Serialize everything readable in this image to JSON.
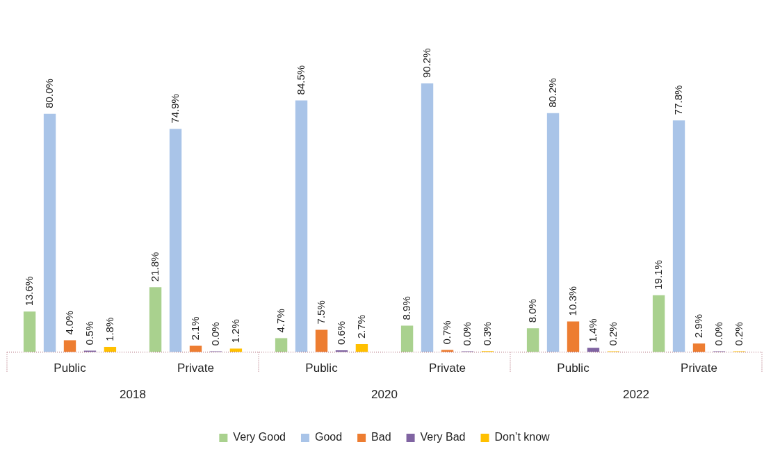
{
  "chart_data": {
    "type": "bar",
    "categories": [
      "Public",
      "Private",
      "Public",
      "Private",
      "Public",
      "Private"
    ],
    "annotations": [
      "2018",
      "2020",
      "2022"
    ],
    "legend": "bottom",
    "data_labels": true,
    "grid": false,
    "series": [
      {
        "name": "Very Good",
        "color": "#a9d18e",
        "values": [
          13.6,
          21.8,
          4.7,
          8.9,
          8.0,
          19.1
        ],
        "value_labels": [
          "13.6%",
          "21.8%",
          "4.7%",
          "8.9%",
          "8.0%",
          "19.1%"
        ]
      },
      {
        "name": "Good",
        "color": "#a9c4e8",
        "values": [
          80.0,
          74.9,
          84.5,
          90.2,
          80.2,
          77.8
        ],
        "value_labels": [
          "80.0%",
          "74.9%",
          "84.5%",
          "90.2%",
          "80.2%",
          "77.8%"
        ]
      },
      {
        "name": "Bad",
        "color": "#ed7d31",
        "values": [
          4.0,
          2.1,
          7.5,
          0.7,
          10.3,
          2.9
        ],
        "value_labels": [
          "4.0%",
          "2.1%",
          "7.5%",
          "0.7%",
          "10.3%",
          "2.9%"
        ]
      },
      {
        "name": "Very Bad",
        "color": "#8064a2",
        "values": [
          0.5,
          0.0,
          0.6,
          0.0,
          1.4,
          0.0
        ],
        "value_labels": [
          "0.5%",
          "0.0%",
          "0.6%",
          "0.0%",
          "1.4%",
          "0.0%"
        ]
      },
      {
        "name": "Don’t know",
        "color": "#ffc000",
        "values": [
          1.8,
          1.2,
          2.7,
          0.3,
          0.2,
          0.2
        ],
        "value_labels": [
          "1.8%",
          "1.2%",
          "2.7%",
          "0.3%",
          "0.2%",
          "0.2%"
        ]
      }
    ]
  }
}
